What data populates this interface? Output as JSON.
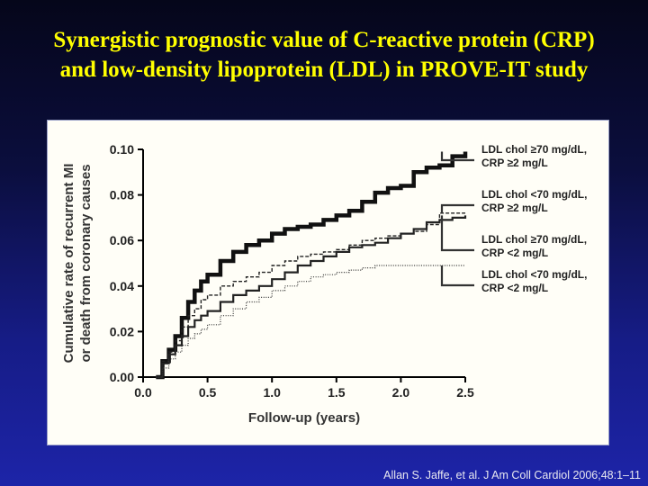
{
  "slide": {
    "title_line1": "Synergistic prognostic value of C-reactive protein (CRP)",
    "title_line2": "and low-density lipoprotein (LDL) in PROVE-IT study",
    "citation": "Allan S. Jaffe, et al. J Am Coll Cardiol 2006;48:1–11"
  },
  "chart_data": {
    "type": "line",
    "title": "",
    "xlabel": "Follow-up (years)",
    "ylabel_lines": [
      "Cumulative rate of recurrent MI",
      "or death from coronary causes"
    ],
    "xlim": [
      0,
      2.5
    ],
    "ylim": [
      0,
      0.1
    ],
    "x_ticks": [
      "0.0",
      "0.5",
      "1.0",
      "1.5",
      "2.0",
      "2.5"
    ],
    "y_ticks": [
      "0.00",
      "0.02",
      "0.04",
      "0.06",
      "0.08",
      "0.10"
    ],
    "grid": false,
    "legend_position": "right",
    "series": [
      {
        "name_lines": [
          "LDL chol ≥70 mg/dL,",
          "CRP ≥2 mg/L"
        ],
        "style": "thick-solid",
        "x": [
          0.1,
          0.15,
          0.2,
          0.25,
          0.3,
          0.35,
          0.4,
          0.45,
          0.5,
          0.6,
          0.7,
          0.8,
          0.9,
          1.0,
          1.1,
          1.2,
          1.3,
          1.4,
          1.5,
          1.6,
          1.7,
          1.8,
          1.9,
          2.0,
          2.1,
          2.2,
          2.3,
          2.4,
          2.5
        ],
        "y": [
          0.0,
          0.007,
          0.012,
          0.018,
          0.026,
          0.033,
          0.038,
          0.042,
          0.045,
          0.051,
          0.055,
          0.058,
          0.06,
          0.063,
          0.065,
          0.066,
          0.067,
          0.069,
          0.071,
          0.073,
          0.077,
          0.081,
          0.083,
          0.084,
          0.09,
          0.092,
          0.093,
          0.097,
          0.099
        ]
      },
      {
        "name_lines": [
          "LDL chol <70 mg/dL,",
          "CRP ≥2 mg/L"
        ],
        "style": "dashed",
        "x": [
          0.1,
          0.15,
          0.2,
          0.25,
          0.3,
          0.35,
          0.4,
          0.45,
          0.5,
          0.6,
          0.7,
          0.8,
          0.9,
          1.0,
          1.1,
          1.2,
          1.3,
          1.4,
          1.5,
          1.6,
          1.7,
          1.8,
          1.9,
          2.0,
          2.1,
          2.2,
          2.3,
          2.4,
          2.5
        ],
        "y": [
          0.0,
          0.007,
          0.011,
          0.016,
          0.022,
          0.027,
          0.03,
          0.034,
          0.036,
          0.04,
          0.042,
          0.044,
          0.046,
          0.049,
          0.051,
          0.053,
          0.054,
          0.055,
          0.056,
          0.058,
          0.06,
          0.061,
          0.062,
          0.063,
          0.064,
          0.067,
          0.072,
          0.072,
          0.072
        ]
      },
      {
        "name_lines": [
          "LDL chol ≥70 mg/dL,",
          "CRP <2 mg/L"
        ],
        "style": "solid",
        "x": [
          0.1,
          0.15,
          0.2,
          0.25,
          0.3,
          0.35,
          0.4,
          0.45,
          0.5,
          0.6,
          0.7,
          0.8,
          0.9,
          1.0,
          1.1,
          1.2,
          1.3,
          1.4,
          1.5,
          1.6,
          1.7,
          1.8,
          1.9,
          2.0,
          2.1,
          2.2,
          2.3,
          2.4,
          2.5
        ],
        "y": [
          0.0,
          0.006,
          0.01,
          0.014,
          0.018,
          0.022,
          0.025,
          0.027,
          0.029,
          0.033,
          0.036,
          0.038,
          0.04,
          0.043,
          0.046,
          0.049,
          0.051,
          0.053,
          0.055,
          0.057,
          0.058,
          0.059,
          0.061,
          0.063,
          0.065,
          0.068,
          0.069,
          0.07,
          0.071
        ]
      },
      {
        "name_lines": [
          "LDL chol <70 mg/dL,",
          "CRP <2 mg/L"
        ],
        "style": "dotted",
        "x": [
          0.1,
          0.15,
          0.2,
          0.25,
          0.3,
          0.35,
          0.4,
          0.45,
          0.5,
          0.6,
          0.7,
          0.8,
          0.9,
          1.0,
          1.1,
          1.2,
          1.3,
          1.4,
          1.5,
          1.6,
          1.7,
          1.8,
          1.9,
          2.0,
          2.1,
          2.2,
          2.3,
          2.4,
          2.5
        ],
        "y": [
          0.0,
          0.004,
          0.008,
          0.011,
          0.014,
          0.017,
          0.019,
          0.021,
          0.023,
          0.027,
          0.03,
          0.033,
          0.035,
          0.038,
          0.04,
          0.042,
          0.044,
          0.045,
          0.046,
          0.047,
          0.048,
          0.049,
          0.049,
          0.049,
          0.049,
          0.049,
          0.049,
          0.049,
          0.049
        ]
      }
    ]
  }
}
